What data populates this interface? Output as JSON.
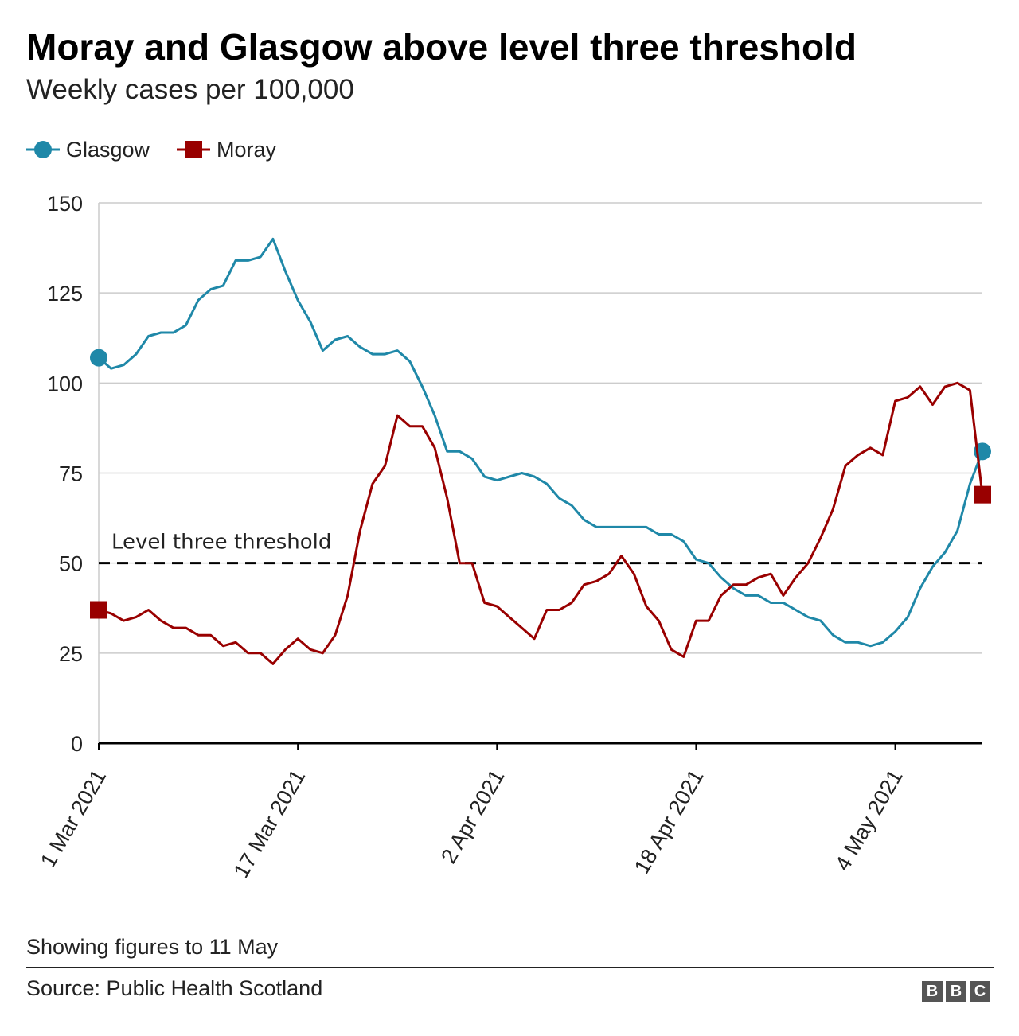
{
  "title": "Moray and Glasgow above level three threshold",
  "subtitle": "Weekly cases per 100,000",
  "note": "Showing figures to 11 May",
  "source": "Source: Public Health Scotland",
  "logo": [
    "B",
    "B",
    "C"
  ],
  "colors": {
    "glasgow": "#1f88a8",
    "moray": "#990000",
    "grid": "#cccccc",
    "axis": "#000000",
    "text": "#222222"
  },
  "chart_data": {
    "type": "line",
    "title": "Moray and Glasgow above level three threshold",
    "subtitle": "Weekly cases per 100,000",
    "x_start": "2021-03-01",
    "x_end": "2021-05-11",
    "x_tick_labels": [
      "1 Mar 2021",
      "17 Mar 2021",
      "2 Apr 2021",
      "18 Apr 2021",
      "4 May 2021"
    ],
    "ylim": [
      0,
      150
    ],
    "y_ticks": [
      0,
      25,
      50,
      75,
      100,
      125,
      150
    ],
    "grid": true,
    "legend": "top-left",
    "threshold": {
      "value": 50,
      "label": "Level three threshold"
    },
    "x": [
      "2021-03-01",
      "2021-03-02",
      "2021-03-03",
      "2021-03-04",
      "2021-03-05",
      "2021-03-06",
      "2021-03-07",
      "2021-03-08",
      "2021-03-09",
      "2021-03-10",
      "2021-03-11",
      "2021-03-12",
      "2021-03-13",
      "2021-03-14",
      "2021-03-15",
      "2021-03-16",
      "2021-03-17",
      "2021-03-18",
      "2021-03-19",
      "2021-03-20",
      "2021-03-21",
      "2021-03-22",
      "2021-03-23",
      "2021-03-24",
      "2021-03-25",
      "2021-03-26",
      "2021-03-27",
      "2021-03-28",
      "2021-03-29",
      "2021-03-30",
      "2021-03-31",
      "2021-04-01",
      "2021-04-02",
      "2021-04-03",
      "2021-04-04",
      "2021-04-05",
      "2021-04-06",
      "2021-04-07",
      "2021-04-08",
      "2021-04-09",
      "2021-04-10",
      "2021-04-11",
      "2021-04-12",
      "2021-04-13",
      "2021-04-14",
      "2021-04-15",
      "2021-04-16",
      "2021-04-17",
      "2021-04-18",
      "2021-04-19",
      "2021-04-20",
      "2021-04-21",
      "2021-04-22",
      "2021-04-23",
      "2021-04-24",
      "2021-04-25",
      "2021-04-26",
      "2021-04-27",
      "2021-04-28",
      "2021-04-29",
      "2021-04-30",
      "2021-05-01",
      "2021-05-02",
      "2021-05-03",
      "2021-05-04",
      "2021-05-05",
      "2021-05-06",
      "2021-05-07",
      "2021-05-08",
      "2021-05-09",
      "2021-05-10",
      "2021-05-11"
    ],
    "series": [
      {
        "name": "Glasgow",
        "marker": "circle",
        "values": [
          107,
          104,
          105,
          108,
          113,
          114,
          114,
          116,
          123,
          126,
          127,
          134,
          134,
          135,
          140,
          131,
          123,
          117,
          109,
          112,
          113,
          110,
          108,
          108,
          109,
          106,
          99,
          91,
          81,
          81,
          79,
          74,
          73,
          74,
          75,
          74,
          72,
          68,
          66,
          62,
          60,
          60,
          60,
          60,
          60,
          58,
          58,
          56,
          51,
          50,
          46,
          43,
          41,
          41,
          39,
          39,
          37,
          35,
          34,
          30,
          28,
          28,
          27,
          28,
          31,
          35,
          43,
          49,
          53,
          59,
          72,
          81
        ]
      },
      {
        "name": "Moray",
        "marker": "square",
        "values": [
          37,
          36,
          34,
          35,
          37,
          34,
          32,
          32,
          30,
          30,
          27,
          28,
          25,
          25,
          22,
          26,
          29,
          26,
          25,
          30,
          41,
          59,
          72,
          77,
          91,
          88,
          88,
          82,
          68,
          50,
          50,
          39,
          38,
          35,
          32,
          29,
          37,
          37,
          39,
          44,
          45,
          47,
          52,
          47,
          38,
          34,
          26,
          24,
          34,
          34,
          41,
          44,
          44,
          46,
          47,
          41,
          46,
          50,
          57,
          65,
          77,
          80,
          82,
          80,
          95,
          96,
          99,
          94,
          99,
          100,
          98,
          69
        ]
      }
    ]
  }
}
